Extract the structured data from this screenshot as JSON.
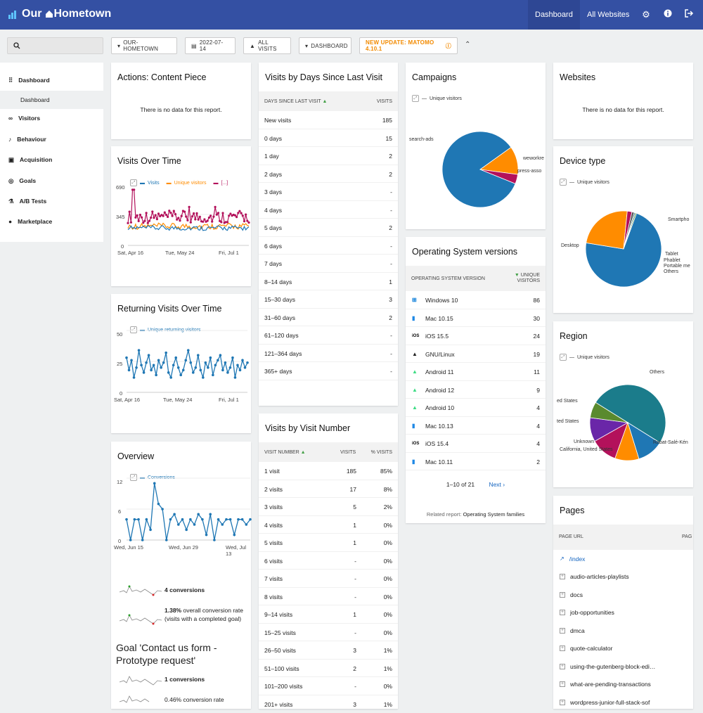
{
  "app": {
    "title": "Our Hometown",
    "title_part1": "Our",
    "title_part2": "Hometown"
  },
  "topnav": {
    "dashboard": "Dashboard",
    "all_websites": "All Websites"
  },
  "icons": {
    "settings": "gear-icon",
    "help": "info-icon",
    "logout": "logout-icon",
    "search": "search-icon"
  },
  "toolbar": {
    "site": "OUR-HOMETOWN",
    "date": "2022-07-14",
    "segment": "ALL VISITS",
    "dashboard": "DASHBOARD",
    "update": "NEW UPDATE: MATOMO 4.10.1"
  },
  "sidebar": {
    "dashboard": "Dashboard",
    "dashboard_sub": "Dashboard",
    "visitors": "Visitors",
    "behaviour": "Behaviour",
    "acquisition": "Acquisition",
    "goals": "Goals",
    "ab_tests": "A/B Tests",
    "marketplace": "Marketplace"
  },
  "widgets": {
    "actions_content": {
      "title": "Actions: Content Piece",
      "nodata": "There is no data for this report."
    },
    "websites": {
      "title": "Websites",
      "nodata": "There is no data for this report."
    },
    "visits_over_time": {
      "title": "Visits Over Time",
      "legend": [
        "Visits",
        "Unique visitors",
        "[...]"
      ],
      "yticks": [
        "690",
        "345",
        "0"
      ],
      "xticks": [
        "Sat, Apr 16",
        "Tue, May 24",
        "Fri, Jul 1"
      ]
    },
    "returning": {
      "title": "Returning Visits Over Time",
      "legend": "Unique returning visitors",
      "yticks": [
        "50",
        "25",
        "0"
      ],
      "xticks": [
        "Sat, Apr 16",
        "Tue, May 24",
        "Fri, Jul 1"
      ]
    },
    "overview": {
      "title": "Overview",
      "legend": "Conversions",
      "yticks": [
        "12",
        "6",
        "0"
      ],
      "xticks": [
        "Wed, Jun 15",
        "Wed, Jun 29",
        "Wed, Jul 13"
      ],
      "conversions": "4 conversions",
      "rate_bold": "1.38%",
      "rate_text": " overall conversion rate (visits with a completed goal)",
      "goal_title": "Goal 'Contact us form - Prototype request'",
      "goal_conv": "1 conversions",
      "goal_rate": "0.46% conversion rate"
    },
    "days_since": {
      "title": "Visits by Days Since Last Visit",
      "col1": "DAYS SINCE LAST VISIT",
      "col2": "VISITS",
      "rows": [
        [
          "New visits",
          "185"
        ],
        [
          "0 days",
          "15"
        ],
        [
          "1 day",
          "2"
        ],
        [
          "2 days",
          "2"
        ],
        [
          "3 days",
          "-"
        ],
        [
          "4 days",
          "-"
        ],
        [
          "5 days",
          "2"
        ],
        [
          "6 days",
          "-"
        ],
        [
          "7 days",
          "-"
        ],
        [
          "8–14 days",
          "1"
        ],
        [
          "15–30 days",
          "3"
        ],
        [
          "31–60 days",
          "2"
        ],
        [
          "61–120 days",
          "-"
        ],
        [
          "121–364 days",
          "-"
        ],
        [
          "365+ days",
          "-"
        ]
      ]
    },
    "visit_number": {
      "title": "Visits by Visit Number",
      "col1": "VISIT NUMBER",
      "col2": "VISITS",
      "col3": "% VISITS",
      "rows": [
        [
          "1 visit",
          "185",
          "85%"
        ],
        [
          "2 visits",
          "17",
          "8%"
        ],
        [
          "3 visits",
          "5",
          "2%"
        ],
        [
          "4 visits",
          "1",
          "0%"
        ],
        [
          "5 visits",
          "1",
          "0%"
        ],
        [
          "6 visits",
          "-",
          "0%"
        ],
        [
          "7 visits",
          "-",
          "0%"
        ],
        [
          "8 visits",
          "-",
          "0%"
        ],
        [
          "9–14 visits",
          "1",
          "0%"
        ],
        [
          "15–25 visits",
          "-",
          "0%"
        ],
        [
          "26–50 visits",
          "3",
          "1%"
        ],
        [
          "51–100 visits",
          "2",
          "1%"
        ],
        [
          "101–200 visits",
          "-",
          "0%"
        ],
        [
          "201+ visits",
          "3",
          "1%"
        ]
      ]
    },
    "campaigns": {
      "title": "Campaigns",
      "legend": "Unique visitors",
      "labels": [
        "search-ads",
        "weworkre",
        "press-asso"
      ]
    },
    "os": {
      "title": "Operating System versions",
      "col1": "OPERATING SYSTEM VERSION",
      "col2": "UNIQUE VISITORS",
      "rows": [
        [
          "windows-icon",
          "Windows 10",
          "86"
        ],
        [
          "mac-icon",
          "Mac 10.15",
          "30"
        ],
        [
          "ios-icon",
          "iOS 15.5",
          "24"
        ],
        [
          "linux-icon",
          "GNU/Linux",
          "19"
        ],
        [
          "android-icon",
          "Android 11",
          "11"
        ],
        [
          "android-icon",
          "Android 12",
          "9"
        ],
        [
          "android-icon",
          "Android 10",
          "4"
        ],
        [
          "mac-icon",
          "Mac 10.13",
          "4"
        ],
        [
          "ios-icon",
          "iOS 15.4",
          "4"
        ],
        [
          "mac-icon",
          "Mac 10.11",
          "2"
        ]
      ],
      "pagination": "1–10 of 21",
      "next": "Next ›",
      "related_label": "Related report:",
      "related_link": "Operating System families"
    },
    "device": {
      "title": "Device type",
      "legend": "Unique visitors",
      "labels": [
        "Desktop",
        "Smartpho",
        "Tablet",
        "Phablet",
        "Portable me",
        "Others"
      ]
    },
    "region": {
      "title": "Region",
      "legend": "Unique visitors",
      "labels": [
        "Others",
        "ed States",
        "ted States",
        "Unknown",
        "California, United States",
        "Rabat-Salé-Kén"
      ]
    },
    "pages": {
      "title": "Pages",
      "col1": "PAGE URL",
      "col2": "PAG",
      "rows": [
        "/index",
        "audio-articles-playlists",
        "docs",
        "job-opportunities",
        "dmca",
        "quote-calculator",
        "using-the-gutenberg-block-edi…",
        "what-are-pending-transactions",
        "wordpress-junior-full-stack-sof"
      ]
    }
  },
  "chart_data": [
    {
      "type": "line",
      "title": "Visits Over Time",
      "series": [
        {
          "name": "Visits"
        },
        {
          "name": "Unique visitors"
        },
        {
          "name": "[...]"
        }
      ],
      "ylim": [
        0,
        690
      ],
      "xticks": [
        "Sat, Apr 16",
        "Tue, May 24",
        "Fri, Jul 1"
      ]
    },
    {
      "type": "line",
      "title": "Returning Visits Over Time",
      "series": [
        {
          "name": "Unique returning visitors",
          "values": [
            28,
            18,
            26,
            12,
            20,
            34,
            22,
            16,
            24,
            30,
            18,
            22,
            14,
            26,
            20,
            24,
            32,
            16,
            12,
            22,
            28,
            20,
            14,
            18,
            26,
            34,
            24,
            16,
            20,
            30,
            18,
            12,
            24,
            20,
            28,
            14,
            22,
            26,
            30,
            18,
            24,
            16,
            20,
            28,
            12,
            22,
            18,
            26,
            20,
            24
          ]
        }
      ],
      "ylim": [
        0,
        50
      ]
    },
    {
      "type": "line",
      "title": "Overview",
      "series": [
        {
          "name": "Conversions",
          "values": [
            4,
            0,
            4,
            4,
            0,
            4,
            2,
            11,
            7,
            6,
            0,
            4,
            5,
            3,
            4,
            2,
            4,
            3,
            5,
            4,
            1,
            5,
            0,
            4,
            3,
            4,
            4,
            1,
            4,
            4,
            3,
            4
          ]
        }
      ],
      "ylim": [
        0,
        12
      ],
      "xticks": [
        "Wed, Jun 15",
        "Wed, Jun 29",
        "Wed, Jul 13"
      ]
    },
    {
      "type": "pie",
      "title": "Campaigns",
      "categories": [
        "search-ads",
        "weworkre",
        "press-asso"
      ],
      "values": [
        84,
        12,
        4
      ]
    },
    {
      "type": "pie",
      "title": "Device type",
      "categories": [
        "Desktop",
        "Smartpho",
        "Tablet",
        "Phablet",
        "Portable me",
        "Others"
      ],
      "values": [
        72,
        24,
        2,
        1,
        0.5,
        0.5
      ]
    },
    {
      "type": "pie",
      "title": "Region",
      "categories": [
        "Others",
        "Rabat-Salé-Kén",
        "California, United States",
        "Unknown",
        "ted States",
        "ed States"
      ],
      "values": [
        44,
        10,
        9,
        10,
        9,
        6
      ]
    }
  ],
  "colors": {
    "nav": "#3450a3",
    "blue": "#1f77b4",
    "orange": "#ff8c00",
    "magenta": "#b3115b",
    "teal": "#1b7c8b",
    "green": "#5a8a2e",
    "purple": "#6a26a8"
  }
}
